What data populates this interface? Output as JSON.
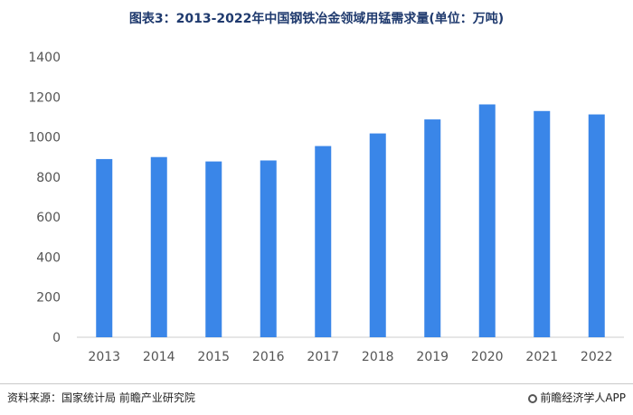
{
  "title": "图表3：2013-2022年中国钢铁冶金领域用锰需求量(单位：万吨)",
  "chart_data": {
    "type": "bar",
    "categories": [
      "2013",
      "2014",
      "2015",
      "2016",
      "2017",
      "2018",
      "2019",
      "2020",
      "2021",
      "2022"
    ],
    "values": [
      890,
      900,
      878,
      883,
      955,
      1018,
      1088,
      1163,
      1130,
      1113
    ],
    "ylim": [
      0,
      1400
    ],
    "yticks": [
      0,
      200,
      400,
      600,
      800,
      1000,
      1200,
      1400
    ],
    "bar_color": "#3a86e8",
    "grid": false,
    "legend": "none"
  },
  "footer": {
    "source": "资料来源：国家统计局 前瞻产业研究院",
    "brand": "前瞻经济学人APP"
  }
}
